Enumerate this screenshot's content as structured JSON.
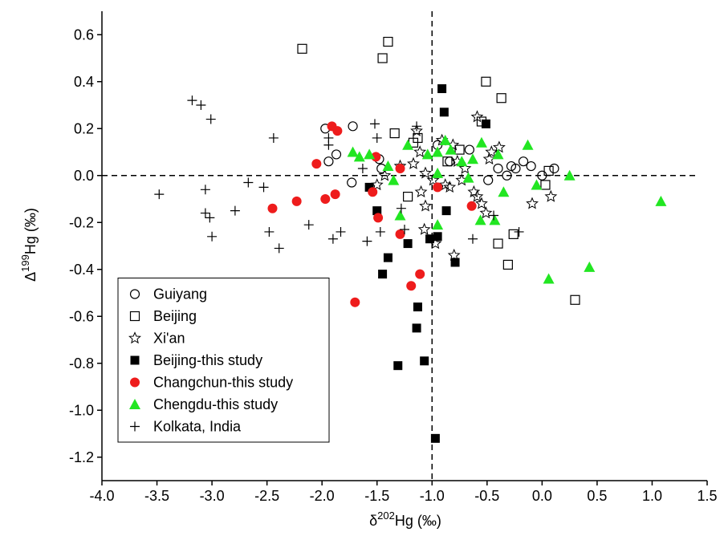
{
  "chart_data": {
    "type": "scatter",
    "x_label": {
      "symbol": "δ",
      "superscript": "202",
      "text": "Hg (‰)"
    },
    "y_label": {
      "symbol": "Δ",
      "superscript": "199",
      "text": "Hg (‰)"
    },
    "xlim": [
      -4.0,
      1.5
    ],
    "ylim": [
      -1.3,
      0.7
    ],
    "xticks": [
      {
        "value": -4,
        "label": "-4.0"
      },
      -3.5,
      {
        "value": -3,
        "label": "-3.0"
      },
      -2.5,
      {
        "value": -2,
        "label": "-2.0"
      },
      -1.5,
      {
        "value": -1,
        "label": "-1.0"
      },
      -0.5,
      {
        "value": 0,
        "label": "0.0"
      },
      0.5,
      {
        "value": 1,
        "label": "1.0"
      },
      1.5
    ],
    "yticks": [
      {
        "value": -1.2,
        "label": "-1.2"
      },
      {
        "value": -1,
        "label": "-1.0"
      },
      -0.8,
      -0.6,
      -0.4,
      -0.2,
      {
        "value": 0,
        "label": "0.0"
      },
      0.2,
      0.4,
      0.6
    ],
    "ref_lines": {
      "x": -1,
      "y": 0
    },
    "legend": "lower left",
    "series": [
      {
        "name": "Guiyang",
        "marker": "circle-open",
        "color": "#000000",
        "x": [
          -1.97,
          -1.72,
          -1.87,
          -1.94,
          -1.73,
          -1.48,
          -1.46,
          -0.95,
          -0.66,
          -0.4,
          -0.28,
          -0.24,
          -0.17,
          -0.1,
          0.11,
          -0.32,
          0.0,
          -0.49,
          -0.84
        ],
        "values": [
          0.2,
          0.21,
          0.09,
          0.06,
          -0.03,
          0.07,
          0.03,
          0.13,
          0.11,
          0.03,
          0.04,
          0.03,
          0.06,
          0.04,
          0.03,
          0.0,
          0.0,
          -0.02,
          0.06
        ]
      },
      {
        "name": "Beijing",
        "marker": "square-open",
        "color": "#000000",
        "x": [
          -2.18,
          -1.4,
          -1.45,
          -0.51,
          -0.37,
          -0.55,
          -1.34,
          -1.17,
          -1.13,
          -0.75,
          -1.22,
          -0.26,
          -0.4,
          -0.31,
          0.3,
          0.03,
          0.06,
          -0.86
        ],
        "values": [
          0.54,
          0.57,
          0.5,
          0.4,
          0.33,
          0.23,
          0.18,
          0.14,
          0.16,
          0.11,
          -0.09,
          -0.25,
          -0.29,
          -0.38,
          -0.53,
          -0.04,
          0.02,
          0.06
        ]
      },
      {
        "name": "Xi'an",
        "marker": "star-open",
        "color": "#000000",
        "x": [
          -1.14,
          -0.59,
          -0.91,
          -1.11,
          -1.17,
          -1.06,
          -0.99,
          -1.1,
          -1.06,
          -0.84,
          -0.73,
          -0.7,
          -0.62,
          -0.55,
          -0.51,
          -0.46,
          -0.39,
          -0.48,
          -0.81,
          -0.88,
          -1.5,
          -1.43,
          -1.29,
          -1.07,
          -0.97,
          -0.8,
          -0.09,
          0.08,
          -0.59,
          -0.77
        ],
        "values": [
          0.19,
          0.25,
          0.15,
          0.1,
          0.05,
          0.01,
          -0.02,
          -0.07,
          -0.13,
          -0.05,
          -0.02,
          0.03,
          -0.07,
          -0.12,
          -0.16,
          0.1,
          0.12,
          0.07,
          0.13,
          -0.04,
          -0.04,
          0.0,
          0.04,
          -0.23,
          -0.29,
          -0.34,
          -0.12,
          -0.09,
          -0.09,
          0.06
        ]
      },
      {
        "name": "Beijing-this study",
        "marker": "square",
        "color": "#000000",
        "x": [
          -0.91,
          -0.89,
          -0.51,
          -1.57,
          -1.5,
          -1.22,
          -0.95,
          -1.02,
          -0.87,
          -1.4,
          -0.79,
          -1.45,
          -1.13,
          -1.14,
          -1.07,
          -1.31,
          -0.97
        ],
        "values": [
          0.37,
          0.27,
          0.22,
          -0.05,
          -0.15,
          -0.29,
          -0.26,
          -0.27,
          -0.15,
          -0.35,
          -0.37,
          -0.42,
          -0.56,
          -0.65,
          -0.79,
          -0.81,
          -1.12
        ]
      },
      {
        "name": "Changchun-this study",
        "marker": "circle",
        "color": "#ee1c1c",
        "x": [
          -1.91,
          -1.86,
          -2.05,
          -1.51,
          -1.29,
          -1.88,
          -1.97,
          -2.23,
          -2.45,
          -1.54,
          -1.49,
          -1.29,
          -0.95,
          -0.64,
          -1.19,
          -1.11,
          -1.7
        ],
        "values": [
          0.21,
          0.19,
          0.05,
          0.08,
          0.03,
          -0.08,
          -0.1,
          -0.11,
          -0.14,
          -0.07,
          -0.18,
          -0.25,
          -0.05,
          -0.13,
          -0.47,
          -0.42,
          -0.54
        ]
      },
      {
        "name": "Chengdu-this study",
        "marker": "triangle",
        "color": "#22e622",
        "x": [
          -1.72,
          -1.66,
          -1.57,
          -1.4,
          -1.35,
          -1.22,
          -1.04,
          -0.88,
          -0.83,
          -0.95,
          -0.95,
          -1.29,
          -0.73,
          -0.63,
          -0.55,
          -0.67,
          -0.56,
          -0.4,
          -0.43,
          -0.35,
          -0.13,
          -0.05,
          0.25,
          1.08,
          0.43,
          0.06,
          -0.95
        ],
        "values": [
          0.1,
          0.08,
          0.09,
          0.04,
          -0.02,
          0.13,
          0.09,
          0.15,
          0.11,
          0.01,
          -0.21,
          -0.17,
          0.06,
          0.07,
          0.14,
          -0.01,
          -0.19,
          0.09,
          -0.19,
          -0.07,
          0.13,
          -0.04,
          0.0,
          -0.11,
          -0.39,
          -0.44,
          0.1
        ]
      },
      {
        "name": "Kolkata, India",
        "marker": "plus",
        "color": "#000000",
        "x": [
          -3.18,
          -3.1,
          -3.01,
          -2.44,
          -3.48,
          -3.06,
          -3.06,
          -3.02,
          -3.0,
          -2.79,
          -2.67,
          -2.53,
          -2.48,
          -2.39,
          -2.12,
          -1.9,
          -1.83,
          -1.94,
          -1.94,
          -1.63,
          -1.59,
          -1.52,
          -1.5,
          -1.47,
          -1.14,
          -0.21,
          -0.44,
          -0.63,
          -1.25,
          -1.28
        ],
        "values": [
          0.32,
          0.3,
          0.24,
          0.16,
          -0.08,
          -0.06,
          -0.16,
          -0.18,
          -0.26,
          -0.15,
          -0.03,
          -0.05,
          -0.24,
          -0.31,
          -0.21,
          -0.27,
          -0.24,
          0.16,
          0.13,
          0.03,
          -0.28,
          0.22,
          0.16,
          -0.24,
          0.21,
          -0.24,
          -0.17,
          -0.27,
          -0.23,
          -0.14
        ]
      }
    ]
  }
}
